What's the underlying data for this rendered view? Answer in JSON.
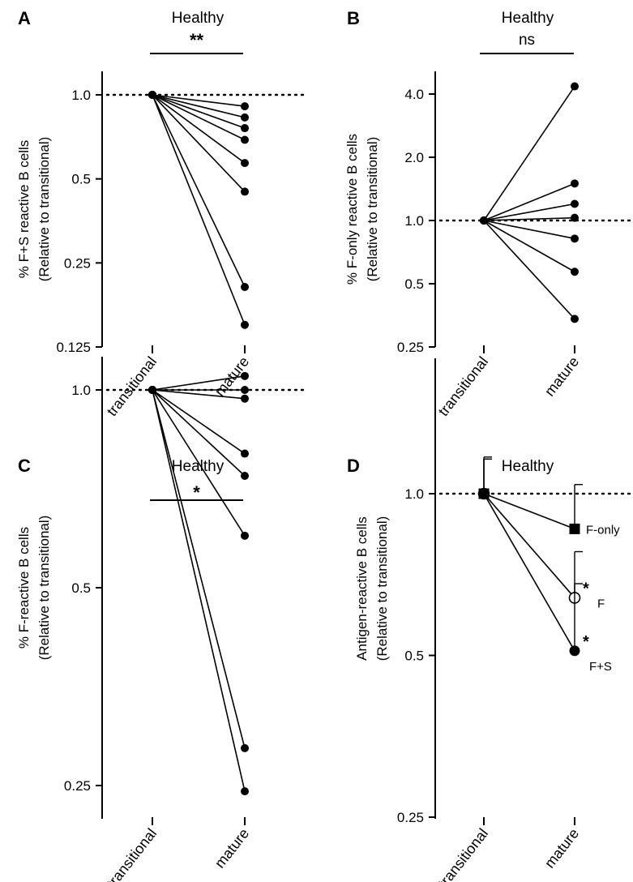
{
  "chart_data": [
    {
      "type": "line",
      "panel": "A",
      "title": "Healthy",
      "significance": "**",
      "ylabel_line1": "% F+S reactive B cells",
      "ylabel_line2": "(Relative to transitional)",
      "y_scale": "log2",
      "ylim": [
        0.125,
        1.2
      ],
      "yticks": [
        1.0,
        0.5,
        0.25,
        0.125
      ],
      "ytick_labels": [
        "1.0",
        "0.5",
        "0.25",
        "0.125"
      ],
      "categories": [
        "transitional",
        "mature"
      ],
      "reference_line": 1.0,
      "series": [
        {
          "values": [
            1.0,
            0.91
          ]
        },
        {
          "values": [
            1.0,
            0.83
          ]
        },
        {
          "values": [
            1.0,
            0.76
          ]
        },
        {
          "values": [
            1.0,
            0.69
          ]
        },
        {
          "values": [
            1.0,
            0.57
          ]
        },
        {
          "values": [
            1.0,
            0.45
          ]
        },
        {
          "values": [
            1.0,
            0.205
          ]
        },
        {
          "values": [
            1.0,
            0.15
          ]
        }
      ]
    },
    {
      "type": "line",
      "panel": "B",
      "title": "Healthy",
      "significance": "ns",
      "ylabel_line1": "% F-only reactive B cells",
      "ylabel_line2": "(Relative to transitional)",
      "y_scale": "log2",
      "ylim": [
        0.25,
        5.0
      ],
      "yticks": [
        4.0,
        2.0,
        1.0,
        0.5,
        0.25
      ],
      "ytick_labels": [
        "4.0",
        "2.0",
        "1.0",
        "0.5",
        "0.25"
      ],
      "categories": [
        "transitional",
        "mature"
      ],
      "reference_line": 1.0,
      "series": [
        {
          "values": [
            1.0,
            4.35
          ]
        },
        {
          "values": [
            1.0,
            1.5
          ]
        },
        {
          "values": [
            1.0,
            1.2
          ]
        },
        {
          "values": [
            1.0,
            1.03
          ]
        },
        {
          "values": [
            1.0,
            0.82
          ]
        },
        {
          "values": [
            1.0,
            0.57
          ]
        },
        {
          "values": [
            1.0,
            0.34
          ]
        }
      ]
    },
    {
      "type": "line",
      "panel": "C",
      "title": "Healthy",
      "significance": "*",
      "ylabel_line1": "% F-reactive B cells",
      "ylabel_line2": "(Relative to transitional)",
      "y_scale": "log2",
      "ylim": [
        0.21,
        1.2
      ],
      "yticks": [
        1.0,
        0.5,
        0.25
      ],
      "ytick_labels": [
        "1.0",
        "0.5",
        "0.25"
      ],
      "categories": [
        "transitional",
        "mature"
      ],
      "reference_line": 1.0,
      "series": [
        {
          "values": [
            1.0,
            1.05
          ]
        },
        {
          "values": [
            1.0,
            1.0
          ]
        },
        {
          "values": [
            1.0,
            0.97
          ]
        },
        {
          "values": [
            1.0,
            0.8
          ]
        },
        {
          "values": [
            1.0,
            0.74
          ]
        },
        {
          "values": [
            1.0,
            0.6
          ]
        },
        {
          "values": [
            1.0,
            0.285
          ]
        },
        {
          "values": [
            1.0,
            0.245
          ]
        }
      ]
    },
    {
      "type": "line",
      "panel": "D",
      "title": "Healthy",
      "ylabel_line1": "Antigen-reactive B cells",
      "ylabel_line2": "(Relative to transitional)",
      "y_scale": "log2",
      "ylim": [
        0.25,
        1.5
      ],
      "yticks": [
        1.0,
        0.5,
        0.25
      ],
      "ytick_labels": [
        "1.0",
        "0.5",
        "0.25"
      ],
      "categories": [
        "transitional",
        "mature"
      ],
      "reference_line": 1.0,
      "series": [
        {
          "name": "F-only",
          "marker": "square",
          "values": [
            1.0,
            0.86
          ],
          "err_upper": [
            1.17,
            1.04
          ],
          "significance": ""
        },
        {
          "name": "F",
          "marker": "open-circle",
          "values": [
            1.0,
            0.64
          ],
          "err_upper": [
            1.16,
            0.78
          ],
          "significance": "*"
        },
        {
          "name": "F+S",
          "marker": "circle",
          "values": [
            1.0,
            0.51
          ],
          "err_upper": [
            1.16,
            0.68
          ],
          "significance": "*"
        }
      ]
    }
  ]
}
